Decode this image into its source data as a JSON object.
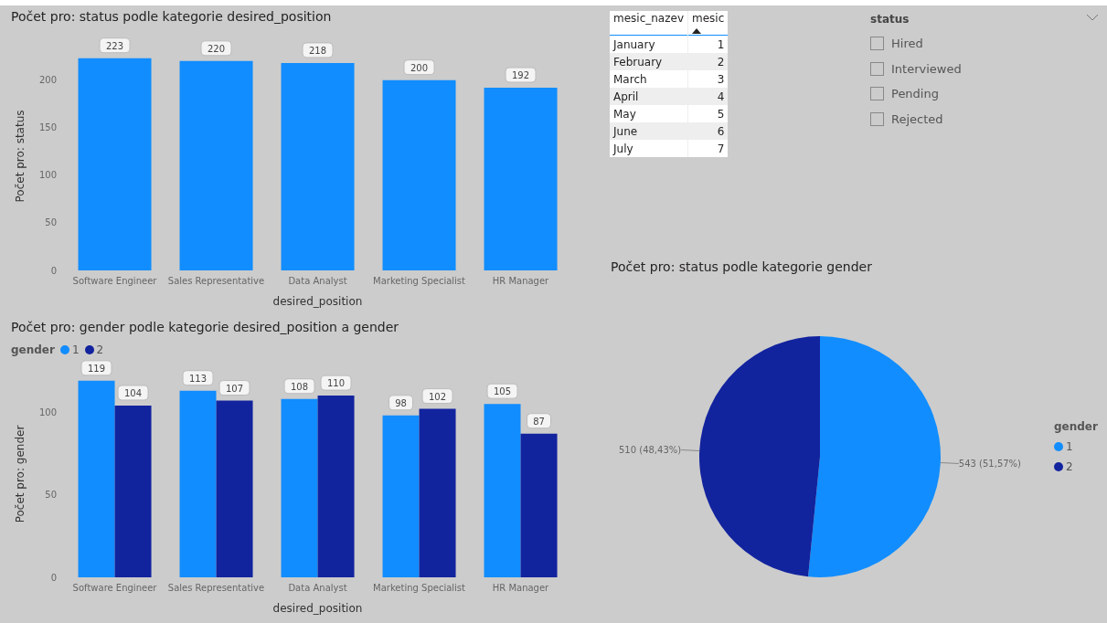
{
  "chart_data": [
    {
      "type": "bar",
      "title": "Počet pro: status podle kategorie desired_position",
      "xlabel": "desired_position",
      "ylabel": "Počet pro: status",
      "categories": [
        "Software Engineer",
        "Sales Representative",
        "Data Analyst",
        "Marketing Specialist",
        "HR Manager"
      ],
      "values": [
        223,
        220,
        218,
        200,
        192
      ],
      "color": "#118dff",
      "ylim": [
        0,
        240
      ],
      "yticks": [
        0,
        50,
        100,
        150,
        200
      ],
      "data_labels": true,
      "legend": false
    },
    {
      "type": "other",
      "xlabel": "mesic_nazev",
      "ylabel": "mesic",
      "categories": [
        "January",
        "February",
        "March",
        "April",
        "May",
        "June",
        "July"
      ],
      "values": [
        1,
        2,
        3,
        4,
        5,
        6,
        7
      ],
      "data_labels": true
    },
    {
      "type": "other",
      "title": "status",
      "categories": [
        "Hired",
        "Interviewed",
        "Pending",
        "Rejected"
      ]
    },
    {
      "type": "pie",
      "title": "Počet pro: status podle kategorie gender",
      "legend_title": "gender",
      "legend": "right",
      "categories": [
        "1",
        "2"
      ],
      "values": [
        543,
        510
      ],
      "colors": [
        "#118dff",
        "#12239e"
      ],
      "value_labels": [
        "543 (51,57%)",
        "510 (48,43%)"
      ]
    },
    {
      "type": "bar",
      "title": "Počet pro: gender podle kategorie desired_position a gender",
      "xlabel": "desired_position",
      "ylabel": "Počet pro: gender",
      "legend_title": "gender",
      "legend": "top left",
      "categories": [
        "Software Engineer",
        "Sales Representative",
        "Data Analyst",
        "Marketing Specialist",
        "HR Manager"
      ],
      "series": [
        {
          "name": "1",
          "color": "#118dff",
          "values": [
            119,
            113,
            108,
            98,
            105
          ]
        },
        {
          "name": "2",
          "color": "#12239e",
          "values": [
            104,
            107,
            110,
            102,
            87
          ]
        }
      ],
      "ylim": [
        0,
        125
      ],
      "yticks": [
        0,
        50,
        100
      ],
      "data_labels": true
    }
  ]
}
